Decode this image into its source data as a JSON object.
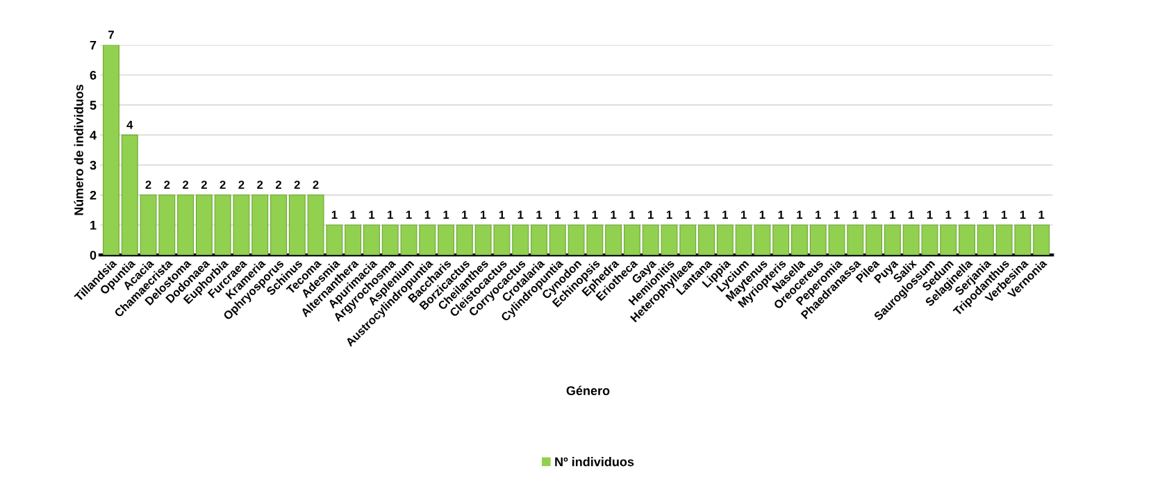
{
  "chart_data": {
    "type": "bar",
    "xlabel": "Género",
    "ylabel": "Número de individuos",
    "categories": [
      "Tillandsia",
      "Opuntia",
      "Acacia",
      "Chamaecrista",
      "Delostoma",
      "Dodonaea",
      "Euphorbia",
      "Furcraea",
      "Krameria",
      "Ophryosporus",
      "Schinus",
      "Tecoma",
      "Adesmia",
      "Alternanthera",
      "Apurimacia",
      "Argyrochosma",
      "Asplenium",
      "Austrocylindropuntia",
      "Baccharis",
      "Borzicactus",
      "Cheilanthes",
      "Cleistocactus",
      "Corryocactus",
      "Crotalaria",
      "Cylindropuntia",
      "Cynodon",
      "Echinopsis",
      "Ephedra",
      "Eriotheca",
      "Gaya",
      "Hemionitis",
      "Heterophyllaea",
      "Lantana",
      "Lippia",
      "Lycium",
      "Maytenus",
      "Myriopteris",
      "Nasella",
      "Oreocereus",
      "Peperomia",
      "Phaedranassa",
      "Pilea",
      "Puya",
      "Salix",
      "Sauroglossum",
      "Sedum",
      "Selaginella",
      "Serjania",
      "Tripodanthus",
      "Verbesina",
      "Vernonia"
    ],
    "series": [
      {
        "name": "Nº individuos",
        "color": "#92d050",
        "values": [
          7,
          4,
          2,
          2,
          2,
          2,
          2,
          2,
          2,
          2,
          2,
          2,
          1,
          1,
          1,
          1,
          1,
          1,
          1,
          1,
          1,
          1,
          1,
          1,
          1,
          1,
          1,
          1,
          1,
          1,
          1,
          1,
          1,
          1,
          1,
          1,
          1,
          1,
          1,
          1,
          1,
          1,
          1,
          1,
          1,
          1,
          1,
          1,
          1,
          1,
          1
        ]
      }
    ],
    "ylim": [
      0,
      7
    ],
    "yticks": [
      0,
      1,
      2,
      3,
      4,
      5,
      6,
      7
    ],
    "grid": "y",
    "legend": "bottom",
    "data_labels": true
  }
}
